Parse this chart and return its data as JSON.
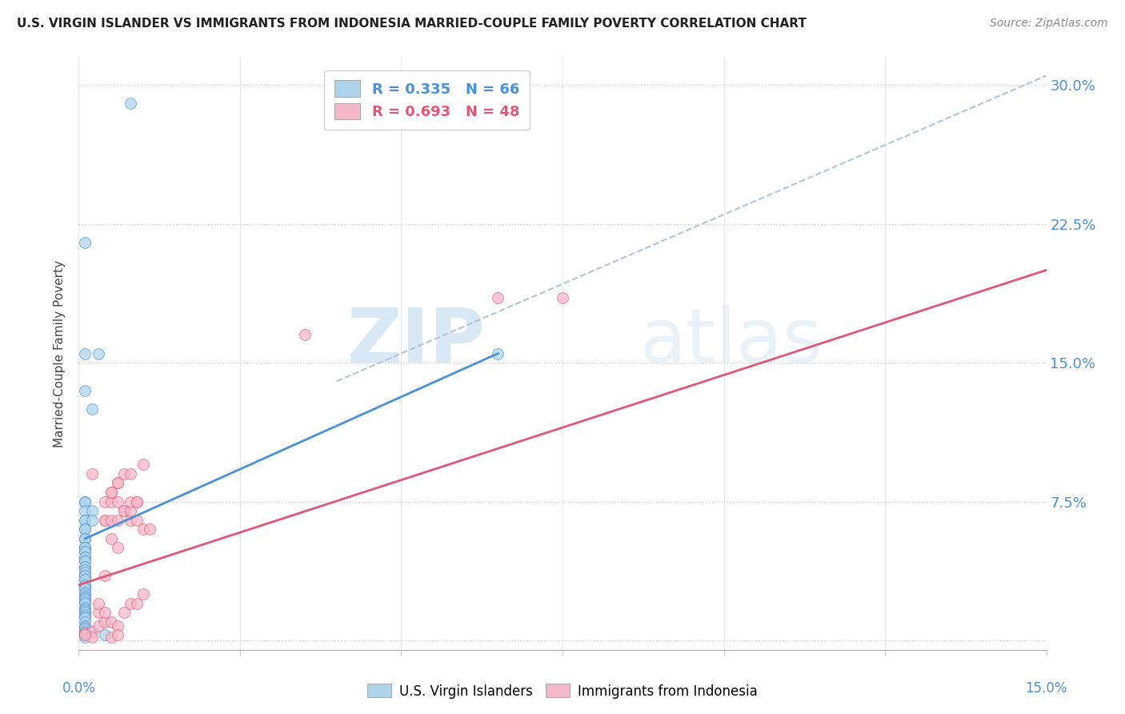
{
  "title": "U.S. VIRGIN ISLANDER VS IMMIGRANTS FROM INDONESIA MARRIED-COUPLE FAMILY POVERTY CORRELATION CHART",
  "source": "Source: ZipAtlas.com",
  "ylabel": "Married-Couple Family Poverty",
  "yticks": [
    0.0,
    0.075,
    0.15,
    0.225,
    0.3
  ],
  "ytick_labels": [
    "",
    "7.5%",
    "15.0%",
    "22.5%",
    "30.0%"
  ],
  "xlim": [
    0.0,
    0.15
  ],
  "ylim": [
    -0.005,
    0.315
  ],
  "R1": 0.335,
  "N1": 66,
  "R2": 0.693,
  "N2": 48,
  "color1": "#aed4ec",
  "color2": "#f5b8c8",
  "line1_color": "#4a90d9",
  "line2_color": "#e05878",
  "legend1": "U.S. Virgin Islanders",
  "legend2": "Immigrants from Indonesia",
  "watermark_zip": "ZIP",
  "watermark_atlas": "atlas",
  "background_color": "#ffffff",
  "blue_line_x": [
    0.001,
    0.065
  ],
  "blue_line_y": [
    0.055,
    0.155
  ],
  "pink_line_x": [
    0.0,
    0.15
  ],
  "pink_line_y": [
    0.03,
    0.2
  ],
  "dash_line_x": [
    0.04,
    0.15
  ],
  "dash_line_y": [
    0.14,
    0.305
  ],
  "blue_scatter_x": [
    0.008,
    0.001,
    0.001,
    0.003,
    0.001,
    0.002,
    0.001,
    0.001,
    0.001,
    0.001,
    0.002,
    0.001,
    0.001,
    0.002,
    0.001,
    0.001,
    0.001,
    0.001,
    0.001,
    0.001,
    0.001,
    0.001,
    0.001,
    0.001,
    0.001,
    0.001,
    0.001,
    0.001,
    0.001,
    0.001,
    0.001,
    0.001,
    0.001,
    0.001,
    0.001,
    0.001,
    0.001,
    0.001,
    0.001,
    0.001,
    0.001,
    0.001,
    0.001,
    0.001,
    0.001,
    0.001,
    0.001,
    0.001,
    0.001,
    0.001,
    0.001,
    0.001,
    0.001,
    0.001,
    0.001,
    0.001,
    0.001,
    0.001,
    0.001,
    0.001,
    0.001,
    0.001,
    0.001,
    0.001,
    0.065,
    0.004
  ],
  "blue_scatter_y": [
    0.29,
    0.215,
    0.155,
    0.155,
    0.135,
    0.125,
    0.075,
    0.075,
    0.075,
    0.07,
    0.07,
    0.065,
    0.065,
    0.065,
    0.06,
    0.06,
    0.06,
    0.055,
    0.055,
    0.055,
    0.05,
    0.05,
    0.05,
    0.048,
    0.048,
    0.045,
    0.045,
    0.043,
    0.043,
    0.04,
    0.04,
    0.038,
    0.037,
    0.035,
    0.035,
    0.033,
    0.033,
    0.03,
    0.03,
    0.028,
    0.028,
    0.026,
    0.025,
    0.024,
    0.023,
    0.022,
    0.021,
    0.02,
    0.018,
    0.017,
    0.016,
    0.015,
    0.014,
    0.013,
    0.012,
    0.01,
    0.008,
    0.007,
    0.006,
    0.005,
    0.004,
    0.003,
    0.003,
    0.002,
    0.155,
    0.003
  ],
  "pink_scatter_x": [
    0.001,
    0.002,
    0.003,
    0.003,
    0.004,
    0.004,
    0.004,
    0.004,
    0.005,
    0.005,
    0.005,
    0.006,
    0.006,
    0.006,
    0.007,
    0.007,
    0.008,
    0.008,
    0.009,
    0.009,
    0.01,
    0.01,
    0.011,
    0.003,
    0.004,
    0.005,
    0.006,
    0.007,
    0.008,
    0.008,
    0.009,
    0.009,
    0.005,
    0.005,
    0.006,
    0.006,
    0.007,
    0.008,
    0.002,
    0.01,
    0.004,
    0.035,
    0.065,
    0.075,
    0.005,
    0.002,
    0.006,
    0.001
  ],
  "pink_scatter_y": [
    0.004,
    0.005,
    0.008,
    0.015,
    0.01,
    0.015,
    0.065,
    0.075,
    0.01,
    0.055,
    0.075,
    0.008,
    0.05,
    0.075,
    0.015,
    0.07,
    0.02,
    0.065,
    0.02,
    0.065,
    0.025,
    0.06,
    0.06,
    0.02,
    0.065,
    0.065,
    0.065,
    0.07,
    0.07,
    0.075,
    0.075,
    0.075,
    0.08,
    0.08,
    0.085,
    0.085,
    0.09,
    0.09,
    0.09,
    0.095,
    0.035,
    0.165,
    0.185,
    0.185,
    0.002,
    0.002,
    0.003,
    0.003
  ]
}
